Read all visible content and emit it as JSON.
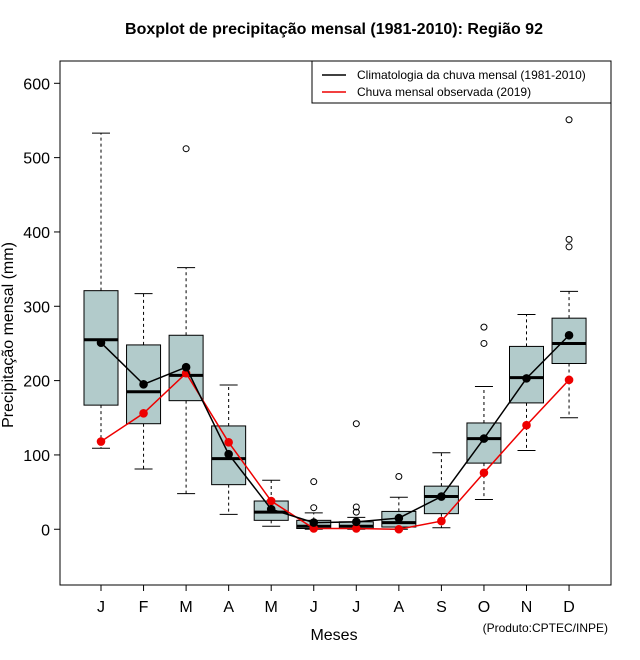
{
  "chart_data": {
    "type": "boxplot",
    "title": "Boxplot de precipitação mensal (1981-2010): Região 92",
    "xlabel": "Meses",
    "ylabel": "Precipitação mensal (mm)",
    "credit": "(Produto:CPTEC/INPE)",
    "ylim": [
      -75,
      630
    ],
    "yticks": [
      0,
      100,
      200,
      300,
      400,
      500,
      600
    ],
    "categories": [
      "J",
      "F",
      "M",
      "A",
      "M",
      "J",
      "J",
      "A",
      "S",
      "O",
      "N",
      "D"
    ],
    "boxes": [
      {
        "whisker_low": 109,
        "q1": 167,
        "median": 255,
        "q3": 321,
        "whisker_high": 533,
        "outliers": []
      },
      {
        "whisker_low": 81,
        "q1": 142,
        "median": 185,
        "q3": 248,
        "whisker_high": 317,
        "outliers": []
      },
      {
        "whisker_low": 48,
        "q1": 173,
        "median": 207,
        "q3": 261,
        "whisker_high": 352,
        "outliers": [
          512
        ]
      },
      {
        "whisker_low": 20,
        "q1": 60,
        "median": 95,
        "q3": 139,
        "whisker_high": 194,
        "outliers": []
      },
      {
        "whisker_low": 4,
        "q1": 12,
        "median": 23,
        "q3": 38,
        "whisker_high": 66,
        "outliers": []
      },
      {
        "whisker_low": 0,
        "q1": 1,
        "median": 4,
        "q3": 12,
        "whisker_high": 22,
        "outliers": [
          29,
          64
        ]
      },
      {
        "whisker_low": 0,
        "q1": 1,
        "median": 4,
        "q3": 10,
        "whisker_high": 16,
        "outliers": [
          23,
          30,
          142
        ]
      },
      {
        "whisker_low": 0,
        "q1": 3,
        "median": 9,
        "q3": 24,
        "whisker_high": 43,
        "outliers": [
          71
        ]
      },
      {
        "whisker_low": 2,
        "q1": 21,
        "median": 44,
        "q3": 58,
        "whisker_high": 103,
        "outliers": []
      },
      {
        "whisker_low": 40,
        "q1": 89,
        "median": 122,
        "q3": 143,
        "whisker_high": 192,
        "outliers": [
          250,
          272
        ]
      },
      {
        "whisker_low": 106,
        "q1": 170,
        "median": 204,
        "q3": 246,
        "whisker_high": 289,
        "outliers": []
      },
      {
        "whisker_low": 150,
        "q1": 223,
        "median": 250,
        "q3": 284,
        "whisker_high": 320,
        "outliers": [
          380,
          390,
          551
        ]
      }
    ],
    "series": [
      {
        "name": "Climatologia da chuva mensal (1981-2010)",
        "color": "#000000",
        "values": [
          251,
          195,
          218,
          101,
          27,
          9,
          10,
          15,
          44,
          122,
          203,
          261
        ]
      },
      {
        "name": "Chuva mensal observada (2019)",
        "color": "#ee0000",
        "values": [
          118,
          156,
          210,
          117,
          38,
          1,
          1,
          0,
          11,
          76,
          140,
          201
        ]
      }
    ],
    "box_fill": "#b2cbcb",
    "legend_position": "top-right"
  }
}
